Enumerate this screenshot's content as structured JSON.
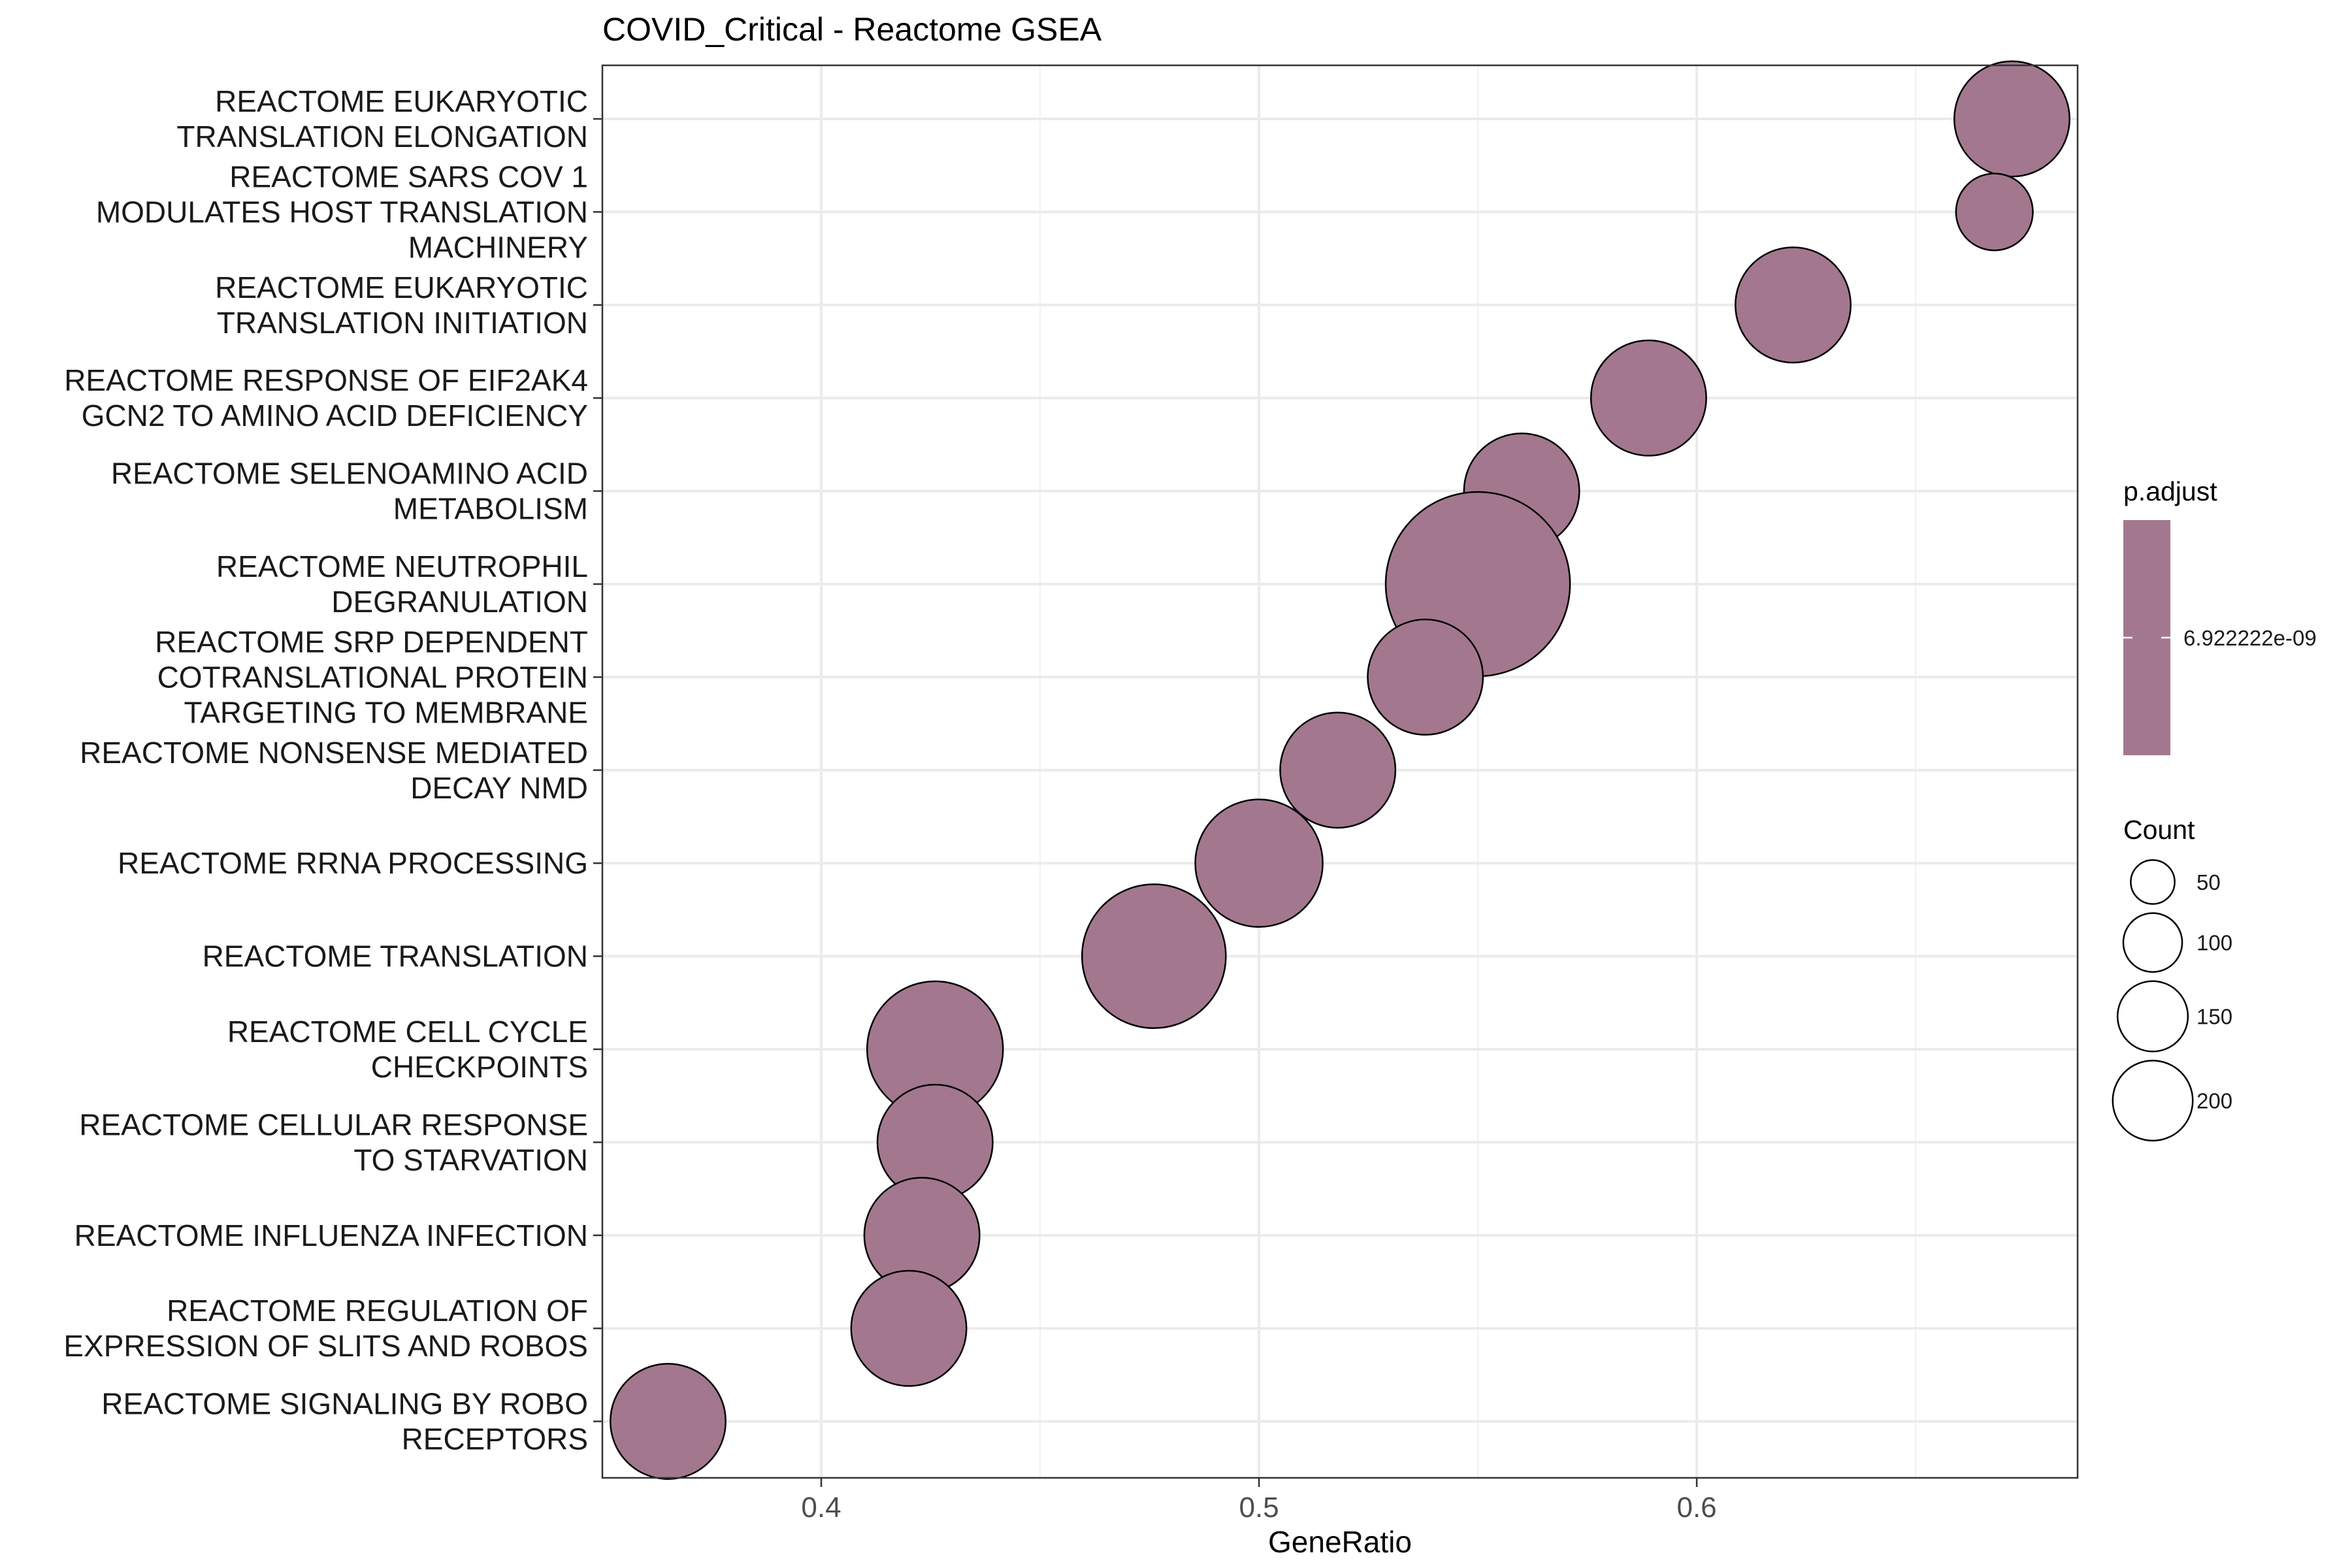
{
  "chart_data": {
    "type": "scatter",
    "title": "COVID_Critical - Reactome GSEA",
    "xlabel": "GeneRatio",
    "ylabel": "",
    "xlim": [
      0.35,
      0.687
    ],
    "xticks": [
      0.4,
      0.5,
      0.6
    ],
    "xtick_labels": [
      "0.4",
      "0.5",
      "0.6"
    ],
    "grid": true,
    "legend_position": "right",
    "point_color": "#a3788f",
    "categories": [
      [
        "REACTOME EUKARYOTIC",
        "TRANSLATION ELONGATION"
      ],
      [
        "REACTOME SARS COV 1",
        "MODULATES HOST TRANSLATION",
        "MACHINERY"
      ],
      [
        "REACTOME EUKARYOTIC",
        "TRANSLATION INITIATION"
      ],
      [
        "REACTOME RESPONSE OF EIF2AK4",
        "GCN2 TO AMINO ACID DEFICIENCY"
      ],
      [
        "REACTOME SELENOAMINO ACID",
        "METABOLISM"
      ],
      [
        "REACTOME NEUTROPHIL",
        "DEGRANULATION"
      ],
      [
        "REACTOME SRP DEPENDENT",
        "COTRANSLATIONAL PROTEIN",
        "TARGETING TO MEMBRANE"
      ],
      [
        "REACTOME NONSENSE MEDIATED",
        "DECAY NMD"
      ],
      [
        "REACTOME RRNA PROCESSING"
      ],
      [
        "REACTOME TRANSLATION"
      ],
      [
        "REACTOME CELL CYCLE",
        "CHECKPOINTS"
      ],
      [
        "REACTOME CELLULAR RESPONSE",
        "TO STARVATION"
      ],
      [
        "REACTOME INFLUENZA INFECTION"
      ],
      [
        "REACTOME REGULATION OF",
        "EXPRESSION OF SLITS AND ROBOS"
      ],
      [
        "REACTOME SIGNALING BY ROBO",
        "RECEPTORS"
      ]
    ],
    "x": [
      0.672,
      0.668,
      0.622,
      0.589,
      0.56,
      0.55,
      0.538,
      0.518,
      0.5,
      0.476,
      0.426,
      0.426,
      0.423,
      0.42,
      0.365
    ],
    "count": [
      90,
      40,
      90,
      90,
      90,
      230,
      90,
      90,
      110,
      140,
      125,
      90,
      90,
      90,
      90
    ],
    "legend": {
      "color_title": "p.adjust",
      "color_label": "6.922222e-09",
      "size_title": "Count",
      "size_values": [
        50,
        100,
        150,
        200
      ],
      "size_labels": [
        "50",
        "100",
        "150",
        "200"
      ]
    }
  }
}
